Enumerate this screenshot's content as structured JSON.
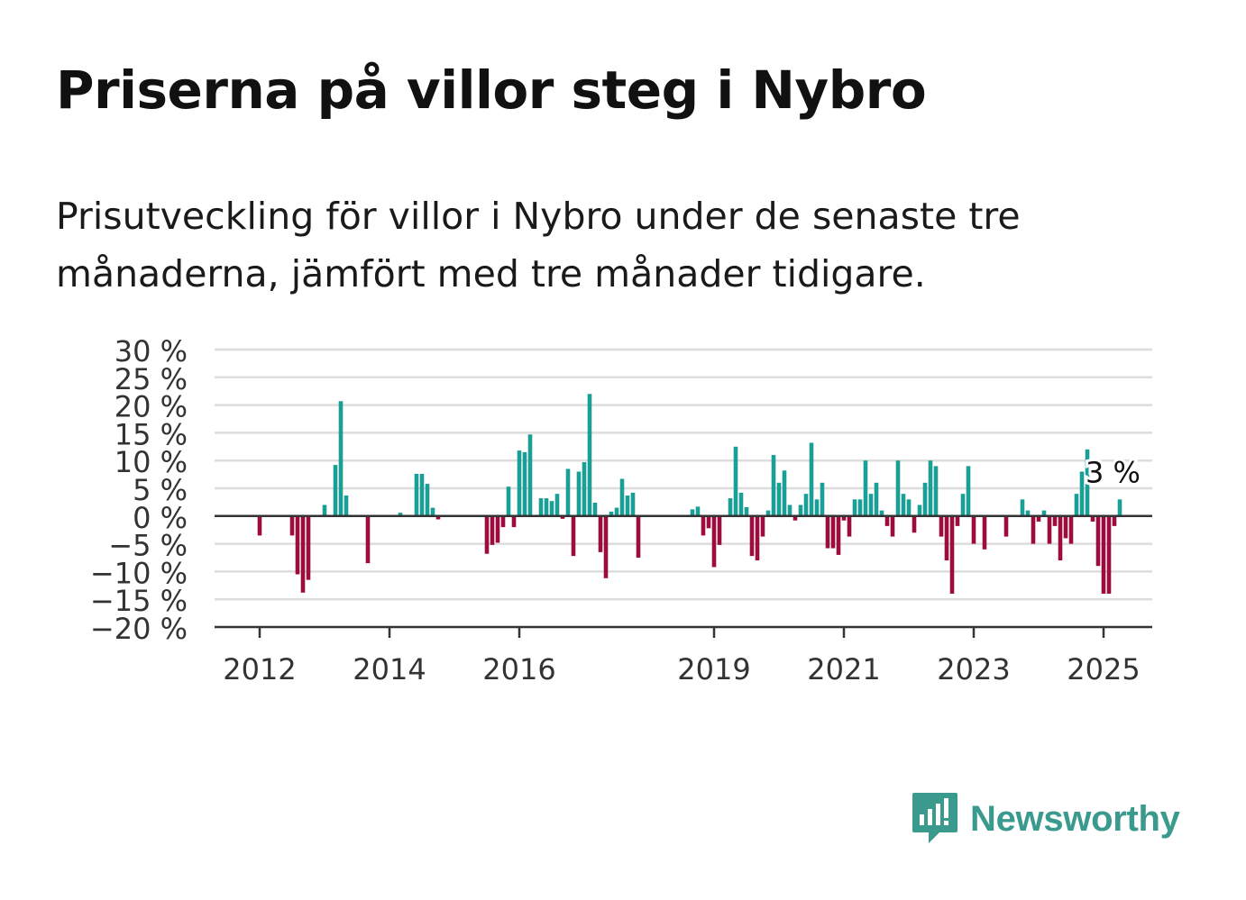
{
  "title": "Priserna på villor steg i Nybro",
  "subtitle": "Prisutveckling för villor i Nybro under de senaste tre månaderna, jämfört med tre månader tidigare.",
  "brand": {
    "name": "Newsworthy",
    "icon": "newsworthy-logo-icon"
  },
  "colors": {
    "positive": "#1a9e95",
    "negative": "#9b0d3e",
    "grid": "#dddddd",
    "axis": "#333333",
    "text": "#333333"
  },
  "chart_data": {
    "type": "bar",
    "title": "Priserna på villor steg i Nybro",
    "xlabel": "",
    "ylabel": "",
    "ylim": [
      -20,
      30
    ],
    "y_ticks": [
      {
        "value": 30,
        "label": "30 %"
      },
      {
        "value": 25,
        "label": "25 %"
      },
      {
        "value": 20,
        "label": "20 %"
      },
      {
        "value": 15,
        "label": "15 %"
      },
      {
        "value": 10,
        "label": "10 %"
      },
      {
        "value": 5,
        "label": "5 %"
      },
      {
        "value": 0,
        "label": "0 %"
      },
      {
        "value": -5,
        "label": "−5 %"
      },
      {
        "value": -10,
        "label": "−10 %"
      },
      {
        "value": -15,
        "label": "−15 %"
      },
      {
        "value": -20,
        "label": "−20 %"
      }
    ],
    "x_ticks": [
      {
        "date": "2012-01",
        "label": "2012"
      },
      {
        "date": "2014-01",
        "label": "2014"
      },
      {
        "date": "2016-01",
        "label": "2016"
      },
      {
        "date": "2019-01",
        "label": "2019"
      },
      {
        "date": "2021-01",
        "label": "2021"
      },
      {
        "date": "2023-01",
        "label": "2023"
      },
      {
        "date": "2025-01",
        "label": "2025"
      }
    ],
    "grid": true,
    "annotation": {
      "date": "2025-01",
      "value": 3,
      "label": "3 %"
    },
    "series": [
      {
        "points": [
          {
            "date": "2012-01",
            "value": -3.5
          },
          {
            "date": "2012-07",
            "value": -3.5
          },
          {
            "date": "2012-08",
            "value": -10.5
          },
          {
            "date": "2012-09",
            "value": -13.8
          },
          {
            "date": "2012-10",
            "value": -11.5
          },
          {
            "date": "2013-01",
            "value": 2.0
          },
          {
            "date": "2013-03",
            "value": 9.2
          },
          {
            "date": "2013-04",
            "value": 20.7
          },
          {
            "date": "2013-05",
            "value": 3.7
          },
          {
            "date": "2013-09",
            "value": -8.5
          },
          {
            "date": "2014-03",
            "value": 0.6
          },
          {
            "date": "2014-06",
            "value": 7.6
          },
          {
            "date": "2014-07",
            "value": 7.6
          },
          {
            "date": "2014-08",
            "value": 5.8
          },
          {
            "date": "2014-09",
            "value": 1.5
          },
          {
            "date": "2014-10",
            "value": -0.6
          },
          {
            "date": "2015-07",
            "value": -6.8
          },
          {
            "date": "2015-08",
            "value": -5.2
          },
          {
            "date": "2015-09",
            "value": -4.8
          },
          {
            "date": "2015-10",
            "value": -2.0
          },
          {
            "date": "2015-11",
            "value": 5.3
          },
          {
            "date": "2015-12",
            "value": -2.0
          },
          {
            "date": "2016-01",
            "value": 11.8
          },
          {
            "date": "2016-02",
            "value": 11.5
          },
          {
            "date": "2016-03",
            "value": 14.7
          },
          {
            "date": "2016-05",
            "value": 3.2
          },
          {
            "date": "2016-06",
            "value": 3.2
          },
          {
            "date": "2016-07",
            "value": 2.7
          },
          {
            "date": "2016-08",
            "value": 4.0
          },
          {
            "date": "2016-09",
            "value": -0.5
          },
          {
            "date": "2016-10",
            "value": 8.5
          },
          {
            "date": "2016-11",
            "value": -7.2
          },
          {
            "date": "2016-12",
            "value": 8.0
          },
          {
            "date": "2017-01",
            "value": 9.7
          },
          {
            "date": "2017-02",
            "value": 22.0
          },
          {
            "date": "2017-03",
            "value": 2.4
          },
          {
            "date": "2017-04",
            "value": -6.5
          },
          {
            "date": "2017-05",
            "value": -11.2
          },
          {
            "date": "2017-06",
            "value": 0.8
          },
          {
            "date": "2017-07",
            "value": 1.5
          },
          {
            "date": "2017-08",
            "value": 6.7
          },
          {
            "date": "2017-09",
            "value": 3.7
          },
          {
            "date": "2017-10",
            "value": 4.2
          },
          {
            "date": "2017-11",
            "value": -7.5
          },
          {
            "date": "2018-09",
            "value": 1.2
          },
          {
            "date": "2018-10",
            "value": 1.7
          },
          {
            "date": "2018-11",
            "value": -3.5
          },
          {
            "date": "2018-12",
            "value": -2.2
          },
          {
            "date": "2019-01",
            "value": -9.2
          },
          {
            "date": "2019-02",
            "value": -5.2
          },
          {
            "date": "2019-04",
            "value": 3.2
          },
          {
            "date": "2019-05",
            "value": 12.5
          },
          {
            "date": "2019-06",
            "value": 4.2
          },
          {
            "date": "2019-07",
            "value": 1.6
          },
          {
            "date": "2019-08",
            "value": -7.2
          },
          {
            "date": "2019-09",
            "value": -8.0
          },
          {
            "date": "2019-10",
            "value": -3.7
          },
          {
            "date": "2019-11",
            "value": 1.0
          },
          {
            "date": "2019-12",
            "value": 11.0
          },
          {
            "date": "2020-01",
            "value": 6.0
          },
          {
            "date": "2020-02",
            "value": 8.2
          },
          {
            "date": "2020-03",
            "value": 2.0
          },
          {
            "date": "2020-04",
            "value": -0.8
          },
          {
            "date": "2020-05",
            "value": 2.0
          },
          {
            "date": "2020-06",
            "value": 4.0
          },
          {
            "date": "2020-07",
            "value": 13.2
          },
          {
            "date": "2020-08",
            "value": 3.0
          },
          {
            "date": "2020-09",
            "value": 6.0
          },
          {
            "date": "2020-10",
            "value": -5.8
          },
          {
            "date": "2020-11",
            "value": -5.8
          },
          {
            "date": "2020-12",
            "value": -7.0
          },
          {
            "date": "2021-01",
            "value": -0.8
          },
          {
            "date": "2021-02",
            "value": -3.7
          },
          {
            "date": "2021-03",
            "value": 3.0
          },
          {
            "date": "2021-04",
            "value": 3.0
          },
          {
            "date": "2021-05",
            "value": 10.0
          },
          {
            "date": "2021-06",
            "value": 4.0
          },
          {
            "date": "2021-07",
            "value": 6.0
          },
          {
            "date": "2021-08",
            "value": 1.0
          },
          {
            "date": "2021-09",
            "value": -1.8
          },
          {
            "date": "2021-10",
            "value": -3.7
          },
          {
            "date": "2021-11",
            "value": 10.0
          },
          {
            "date": "2021-12",
            "value": 4.0
          },
          {
            "date": "2022-01",
            "value": 3.0
          },
          {
            "date": "2022-02",
            "value": -3.0
          },
          {
            "date": "2022-03",
            "value": 2.0
          },
          {
            "date": "2022-04",
            "value": 6.0
          },
          {
            "date": "2022-05",
            "value": 10.0
          },
          {
            "date": "2022-06",
            "value": 9.0
          },
          {
            "date": "2022-07",
            "value": -3.7
          },
          {
            "date": "2022-08",
            "value": -8.0
          },
          {
            "date": "2022-09",
            "value": -14.0
          },
          {
            "date": "2022-10",
            "value": -1.8
          },
          {
            "date": "2022-11",
            "value": 4.0
          },
          {
            "date": "2022-12",
            "value": 9.0
          },
          {
            "date": "2023-01",
            "value": -5.0
          },
          {
            "date": "2023-03",
            "value": -6.0
          },
          {
            "date": "2023-07",
            "value": -3.7
          },
          {
            "date": "2023-10",
            "value": 3.0
          },
          {
            "date": "2023-11",
            "value": 1.0
          },
          {
            "date": "2023-12",
            "value": -5.0
          },
          {
            "date": "2024-01",
            "value": -1.0
          },
          {
            "date": "2024-02",
            "value": 1.0
          },
          {
            "date": "2024-03",
            "value": -5.0
          },
          {
            "date": "2024-04",
            "value": -1.8
          },
          {
            "date": "2024-05",
            "value": -8.0
          },
          {
            "date": "2024-06",
            "value": -4.0
          },
          {
            "date": "2024-07",
            "value": -5.0
          },
          {
            "date": "2024-08",
            "value": 4.0
          },
          {
            "date": "2024-09",
            "value": 8.0
          },
          {
            "date": "2024-10",
            "value": 12.0
          },
          {
            "date": "2024-11",
            "value": -1.0
          },
          {
            "date": "2024-12",
            "value": -9.0
          },
          {
            "date": "2025-01",
            "value": -14.0
          },
          {
            "date": "2025-02",
            "value": -14.0
          },
          {
            "date": "2025-03",
            "value": -1.8
          },
          {
            "date": "2025-04",
            "value": 3.0
          }
        ]
      }
    ]
  }
}
